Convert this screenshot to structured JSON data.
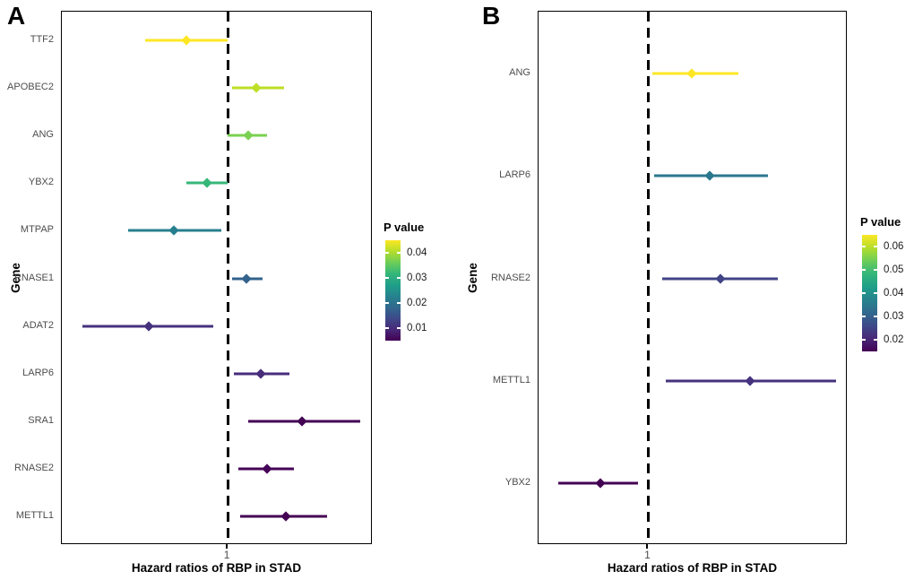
{
  "chart_data": [
    {
      "type": "forest",
      "panel_label": "A",
      "xlabel": "Hazard ratios of RBP in STAD",
      "ylabel": "Gene",
      "xlim": [
        0.2,
        1.7
      ],
      "x_ticks": [
        {
          "value": 1,
          "label": "1"
        }
      ],
      "reference_line": 1,
      "legend": {
        "title": "P value",
        "range": [
          0.005,
          0.045
        ],
        "ticks": [
          {
            "value": 0.04,
            "label": "0.04"
          },
          {
            "value": 0.03,
            "label": "0.03"
          },
          {
            "value": 0.02,
            "label": "0.02"
          },
          {
            "value": 0.01,
            "label": "0.01"
          }
        ]
      },
      "series": [
        {
          "gene": "TTF2",
          "hr": 0.8,
          "ci_low": 0.6,
          "ci_high": 1.0,
          "color": "#FDE725"
        },
        {
          "gene": "APOBEC2",
          "hr": 1.14,
          "ci_low": 1.02,
          "ci_high": 1.27,
          "color": "#BDDF26"
        },
        {
          "gene": "ANG",
          "hr": 1.1,
          "ci_low": 1.0,
          "ci_high": 1.19,
          "color": "#7AD151"
        },
        {
          "gene": "YBX2",
          "hr": 0.9,
          "ci_low": 0.8,
          "ci_high": 1.0,
          "color": "#35B779"
        },
        {
          "gene": "MTPAP",
          "hr": 0.74,
          "ci_low": 0.52,
          "ci_high": 0.97,
          "color": "#277F8E"
        },
        {
          "gene": "RNASE1",
          "hr": 1.09,
          "ci_low": 1.02,
          "ci_high": 1.17,
          "color": "#33638D"
        },
        {
          "gene": "ADAT2",
          "hr": 0.62,
          "ci_low": 0.3,
          "ci_high": 0.93,
          "color": "#46327E"
        },
        {
          "gene": "LARP6",
          "hr": 1.16,
          "ci_low": 1.03,
          "ci_high": 1.3,
          "color": "#472D7B"
        },
        {
          "gene": "SRA1",
          "hr": 1.36,
          "ci_low": 1.1,
          "ci_high": 1.64,
          "color": "#440154"
        },
        {
          "gene": "RNASE2",
          "hr": 1.19,
          "ci_low": 1.05,
          "ci_high": 1.32,
          "color": "#450457"
        },
        {
          "gene": "METTL1",
          "hr": 1.28,
          "ci_low": 1.06,
          "ci_high": 1.48,
          "color": "#440154"
        }
      ]
    },
    {
      "type": "forest",
      "panel_label": "B",
      "xlabel": "Hazard ratios of RBP in STAD",
      "ylabel": "Gene",
      "xlim": [
        0.45,
        2.0
      ],
      "x_ticks": [
        {
          "value": 1,
          "label": "1"
        }
      ],
      "reference_line": 1,
      "legend": {
        "title": "P value",
        "range": [
          0.015,
          0.065
        ],
        "ticks": [
          {
            "value": 0.06,
            "label": "0.06"
          },
          {
            "value": 0.05,
            "label": "0.05"
          },
          {
            "value": 0.04,
            "label": "0.04"
          },
          {
            "value": 0.03,
            "label": "0.03"
          },
          {
            "value": 0.02,
            "label": "0.02"
          }
        ]
      },
      "series": [
        {
          "gene": "ANG",
          "hr": 1.22,
          "ci_low": 1.02,
          "ci_high": 1.45,
          "color": "#FDE725"
        },
        {
          "gene": "LARP6",
          "hr": 1.31,
          "ci_low": 1.03,
          "ci_high": 1.6,
          "color": "#2A788E"
        },
        {
          "gene": "RNASE2",
          "hr": 1.36,
          "ci_low": 1.07,
          "ci_high": 1.65,
          "color": "#414487"
        },
        {
          "gene": "METTL1",
          "hr": 1.51,
          "ci_low": 1.09,
          "ci_high": 1.94,
          "color": "#46327E"
        },
        {
          "gene": "YBX2",
          "hr": 0.76,
          "ci_low": 0.55,
          "ci_high": 0.95,
          "color": "#440154"
        }
      ]
    }
  ]
}
